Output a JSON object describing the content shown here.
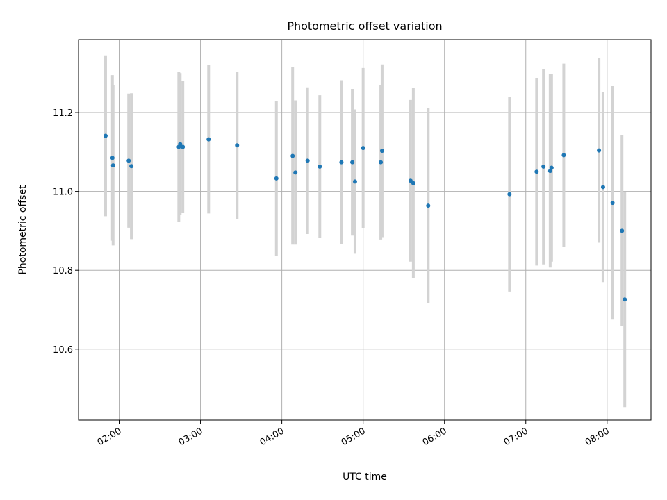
{
  "chart_data": {
    "type": "scatter",
    "title": "Photometric offset variation",
    "xlabel": "UTC time",
    "ylabel": "Photometric offset",
    "x_tick_labels": [
      "02:00",
      "03:00",
      "04:00",
      "05:00",
      "06:00",
      "07:00",
      "08:00"
    ],
    "x_ticks_hours": [
      2,
      3,
      4,
      5,
      6,
      7,
      8
    ],
    "y_ticks": [
      10.6,
      10.8,
      11.0,
      11.2
    ],
    "y_tick_labels": [
      "10.6",
      "10.8",
      "11.0",
      "11.2"
    ],
    "xlim_hours": [
      1.5,
      8.54
    ],
    "ylim": [
      10.42,
      11.385
    ],
    "grid": true,
    "colors": {
      "points": "#1f77b4",
      "errorbars": "#d3d3d3",
      "grid": "#b0b0b0",
      "axes": "#000000"
    },
    "points": [
      {
        "t": 1.833,
        "y": 11.141,
        "err": 0.204
      },
      {
        "t": 1.917,
        "y": 11.085,
        "err": 0.21
      },
      {
        "t": 1.925,
        "y": 11.066,
        "err": 0.203
      },
      {
        "t": 2.117,
        "y": 11.078,
        "err": 0.17
      },
      {
        "t": 2.15,
        "y": 11.064,
        "err": 0.185
      },
      {
        "t": 2.733,
        "y": 11.113,
        "err": 0.19
      },
      {
        "t": 2.75,
        "y": 11.12,
        "err": 0.18
      },
      {
        "t": 2.783,
        "y": 11.113,
        "err": 0.167
      },
      {
        "t": 3.1,
        "y": 11.132,
        "err": 0.188
      },
      {
        "t": 3.45,
        "y": 11.117,
        "err": 0.187
      },
      {
        "t": 3.933,
        "y": 11.033,
        "err": 0.197
      },
      {
        "t": 4.133,
        "y": 11.09,
        "err": 0.225
      },
      {
        "t": 4.167,
        "y": 11.048,
        "err": 0.183
      },
      {
        "t": 4.317,
        "y": 11.078,
        "err": 0.186
      },
      {
        "t": 4.467,
        "y": 11.063,
        "err": 0.181
      },
      {
        "t": 4.733,
        "y": 11.074,
        "err": 0.208
      },
      {
        "t": 4.867,
        "y": 11.074,
        "err": 0.186
      },
      {
        "t": 4.9,
        "y": 11.025,
        "err": 0.183
      },
      {
        "t": 5.0,
        "y": 11.11,
        "err": 0.203
      },
      {
        "t": 5.217,
        "y": 11.074,
        "err": 0.196
      },
      {
        "t": 5.233,
        "y": 11.103,
        "err": 0.219
      },
      {
        "t": 5.583,
        "y": 11.027,
        "err": 0.205
      },
      {
        "t": 5.617,
        "y": 11.021,
        "err": 0.241
      },
      {
        "t": 5.8,
        "y": 10.964,
        "err": 0.247
      },
      {
        "t": 6.8,
        "y": 10.993,
        "err": 0.247
      },
      {
        "t": 7.133,
        "y": 11.05,
        "err": 0.238
      },
      {
        "t": 7.217,
        "y": 11.063,
        "err": 0.248
      },
      {
        "t": 7.3,
        "y": 11.052,
        "err": 0.245
      },
      {
        "t": 7.317,
        "y": 11.06,
        "err": 0.238
      },
      {
        "t": 7.467,
        "y": 11.092,
        "err": 0.232
      },
      {
        "t": 7.9,
        "y": 11.104,
        "err": 0.234
      },
      {
        "t": 7.95,
        "y": 11.011,
        "err": 0.241
      },
      {
        "t": 8.067,
        "y": 10.971,
        "err": 0.296
      },
      {
        "t": 8.183,
        "y": 10.9,
        "err": 0.242
      },
      {
        "t": 8.217,
        "y": 10.726,
        "err": 0.273
      }
    ]
  }
}
